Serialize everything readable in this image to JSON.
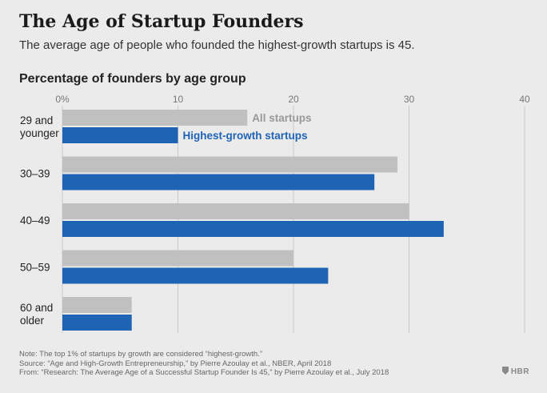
{
  "title": "The Age of Startup Founders",
  "subtitle": "The average age of people who founded the highest-growth startups is 45.",
  "chart_data": {
    "type": "bar",
    "orientation": "horizontal",
    "title": "Percentage of founders by age group",
    "categories": [
      "29 and younger",
      "30–39",
      "40–49",
      "50–59",
      "60 and older"
    ],
    "category_label_lines": [
      [
        "29 and",
        "younger"
      ],
      [
        "30–39"
      ],
      [
        "40–49"
      ],
      [
        "50–59"
      ],
      [
        "60 and",
        "older"
      ]
    ],
    "series": [
      {
        "name": "All startups",
        "values": [
          16,
          29,
          30,
          20,
          6
        ],
        "color": "#c0c0c0",
        "label_color": "#999999"
      },
      {
        "name": "Highest-growth startups",
        "values": [
          10,
          27,
          33,
          23,
          6
        ],
        "color": "#1f63b5",
        "label_color": "#1f63b5"
      }
    ],
    "xlim": [
      0,
      40
    ],
    "xticks": [
      0,
      10,
      20,
      30,
      40
    ],
    "xtick_labels": [
      "0%",
      "10",
      "20",
      "30",
      "40"
    ],
    "grid": true,
    "legend": "inline labels on first category"
  },
  "notes": [
    "Note: The top 1% of startups by growth are considered “highest-growth.”",
    "Source: “Age and High-Growth Entrepreneurship,” by Pierre Azoulay et al., NBER, April 2018",
    "From: “Research: The Average Age of a Successful Startup Founder Is 45,” by Pierre Azoulay et al., July 2018"
  ],
  "logo": "HBR"
}
